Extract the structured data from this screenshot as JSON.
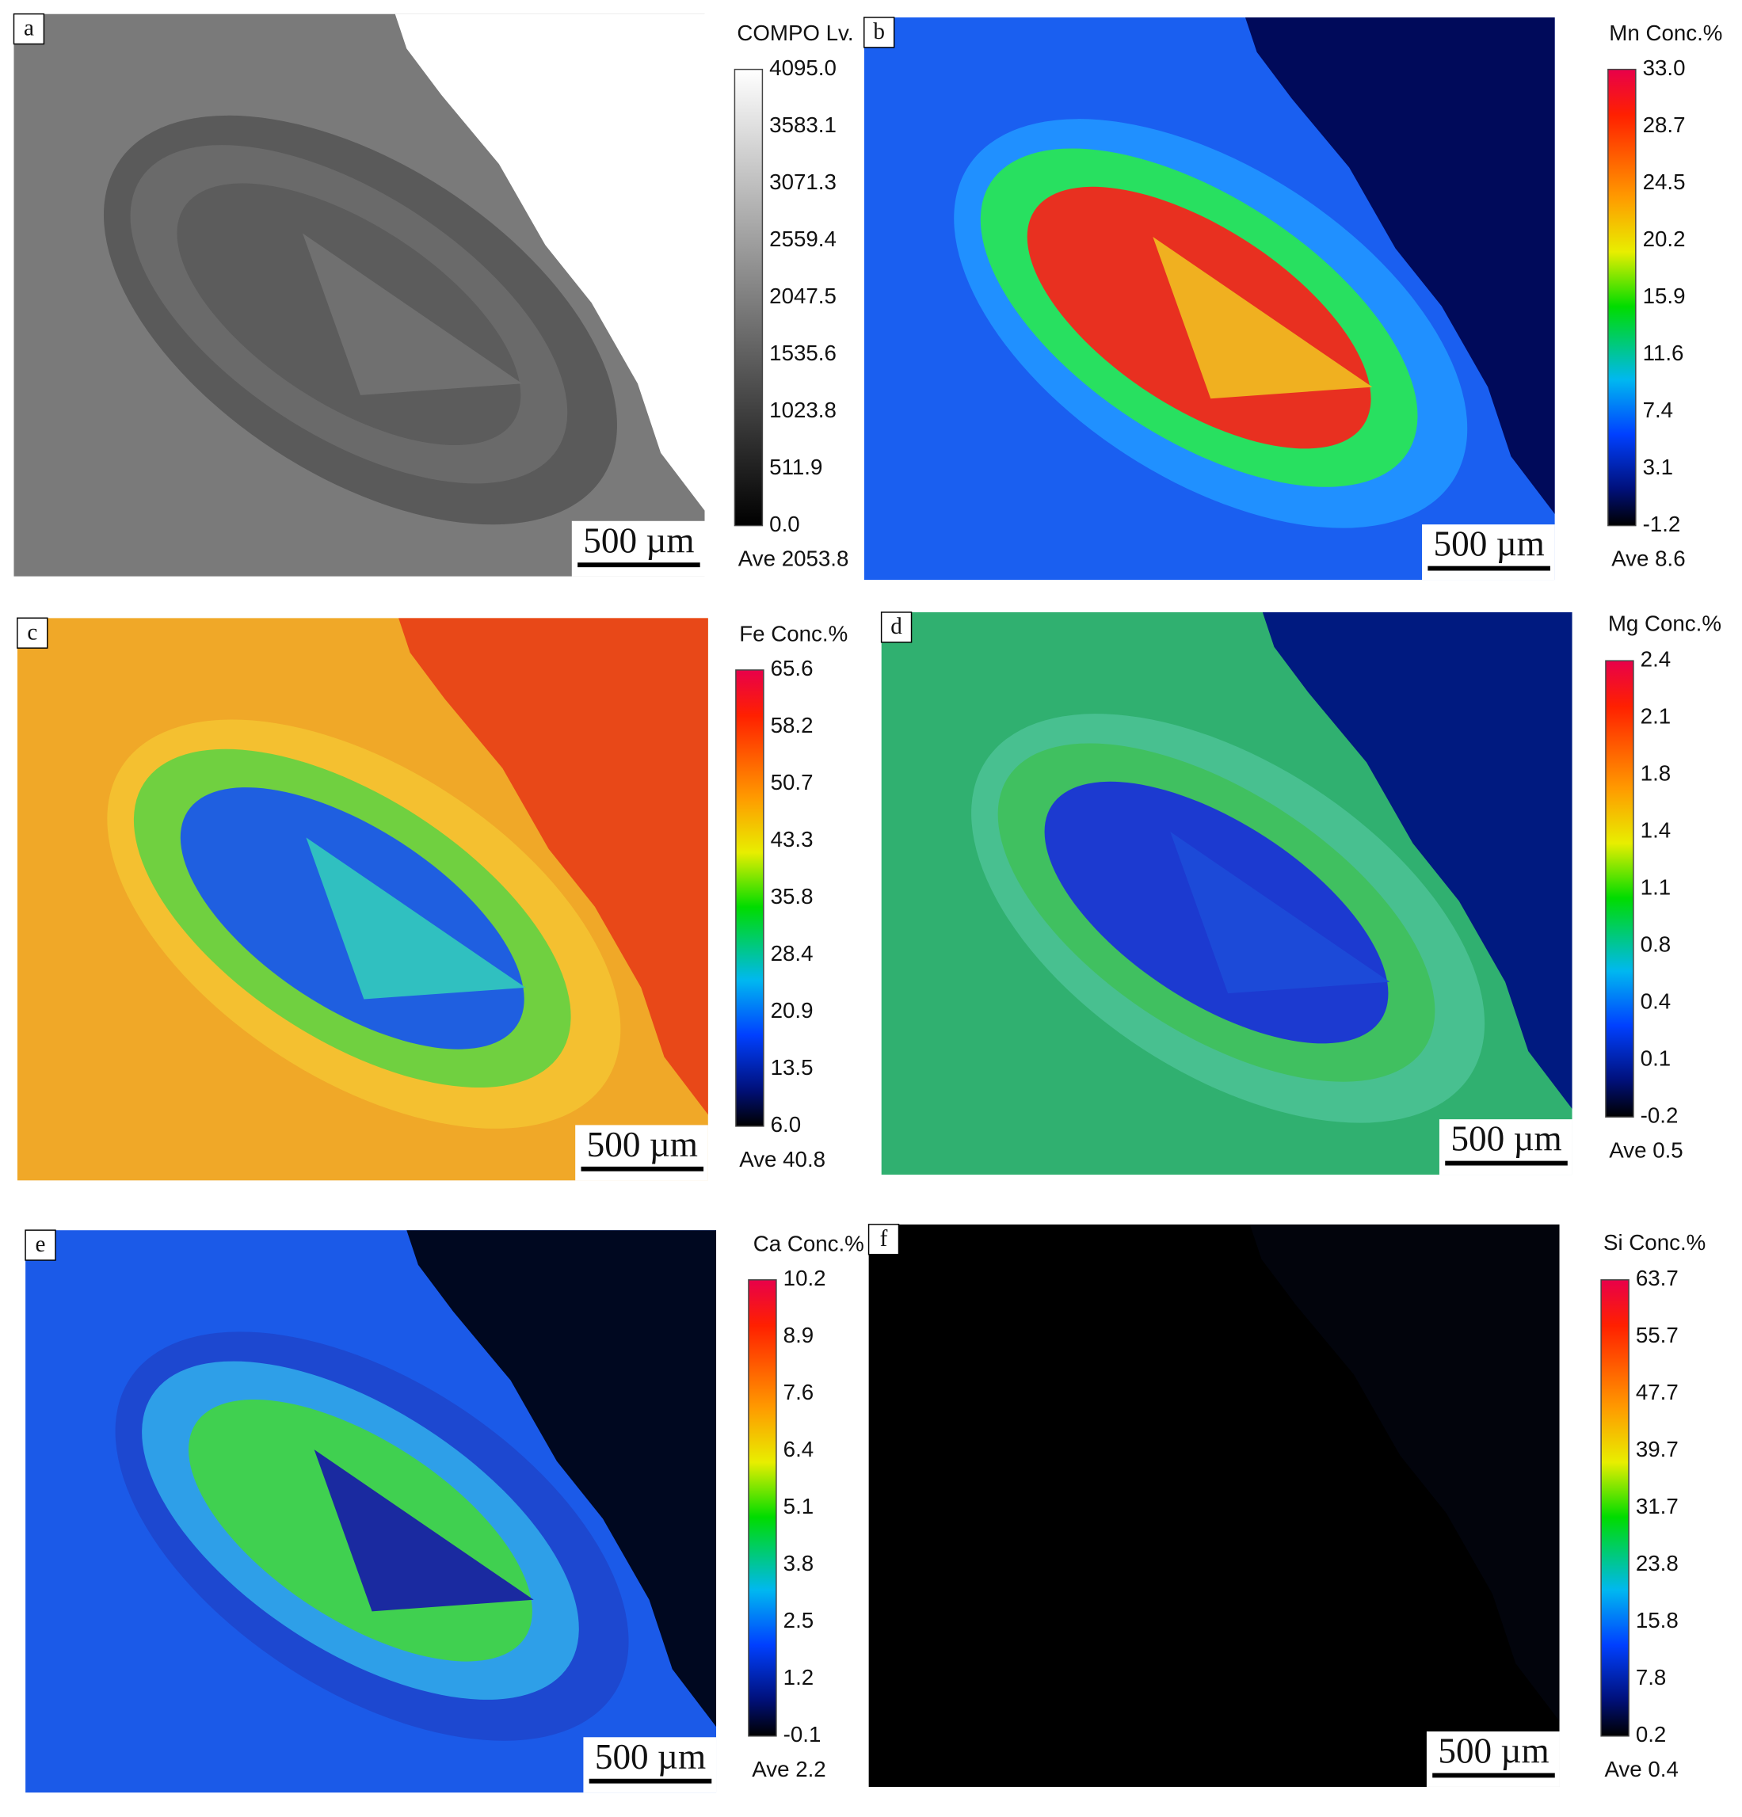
{
  "panels": [
    {
      "label": "a",
      "colorbar": {
        "title": "COMPO  Lv.",
        "ticks": [
          "4095.0",
          "3583.1",
          "3071.3",
          "2559.4",
          "2047.5",
          "1535.6",
          "1023.8",
          "511.9",
          "0.0"
        ],
        "average": "Ave 2053.8"
      },
      "scale_bar": "500 µm"
    },
    {
      "label": "b",
      "colorbar": {
        "title": "Mn  Conc.%",
        "ticks": [
          "33.0",
          "28.7",
          "24.5",
          "20.2",
          "15.9",
          "11.6",
          "7.4",
          "3.1",
          "-1.2"
        ],
        "average": "Ave 8.6"
      },
      "scale_bar": "500 µm"
    },
    {
      "label": "c",
      "colorbar": {
        "title": "Fe  Conc.%",
        "ticks": [
          "65.6",
          "58.2",
          "50.7",
          "43.3",
          "35.8",
          "28.4",
          "20.9",
          "13.5",
          "6.0"
        ],
        "average": "Ave 40.8"
      },
      "scale_bar": "500 µm"
    },
    {
      "label": "d",
      "colorbar": {
        "title": "Mg  Conc.%",
        "ticks": [
          "2.4",
          "2.1",
          "1.8",
          "1.4",
          "1.1",
          "0.8",
          "0.4",
          "0.1",
          "-0.2"
        ],
        "average": "Ave 0.5"
      },
      "scale_bar": "500 µm"
    },
    {
      "label": "e",
      "colorbar": {
        "title": "Ca  Conc.%",
        "ticks": [
          "10.2",
          "8.9",
          "7.6",
          "6.4",
          "5.1",
          "3.8",
          "2.5",
          "1.2",
          "-0.1"
        ],
        "average": "Ave 2.2"
      },
      "scale_bar": "500 µm"
    },
    {
      "label": "f",
      "colorbar": {
        "title": "Si  Conc.%",
        "ticks": [
          "63.7",
          "55.7",
          "47.7",
          "39.7",
          "31.7",
          "23.8",
          "15.8",
          "7.8",
          "0.2"
        ],
        "average": "Ave 0.4"
      },
      "scale_bar": "500 µm"
    }
  ]
}
